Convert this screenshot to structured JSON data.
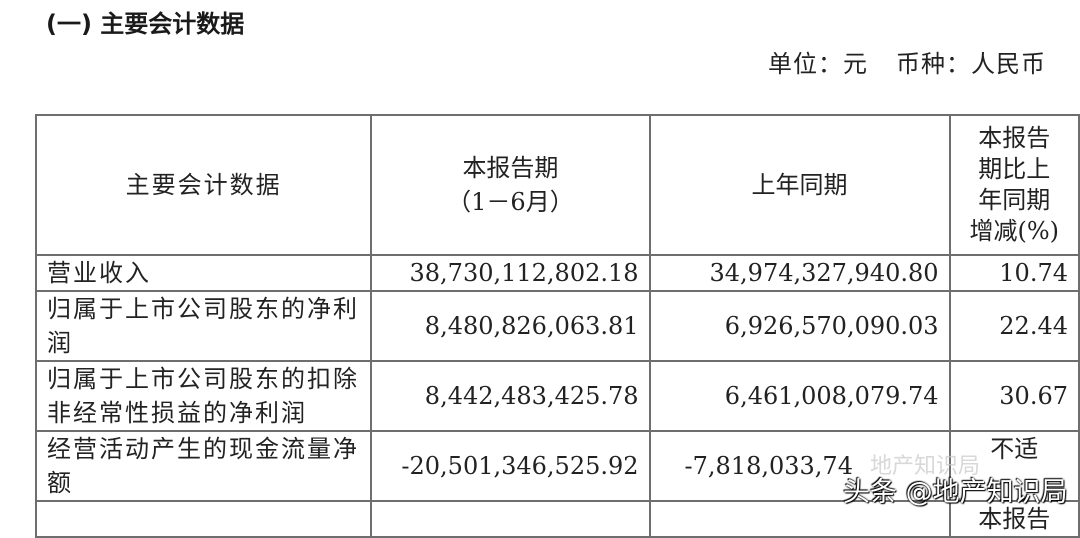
{
  "section_title": "(一) 主要会计数据",
  "unit_label": "单位：元",
  "currency_label": "币种：人民币",
  "table": {
    "headers": [
      "主要会计数据",
      "本报告期\n（1－6月）",
      "上年同期",
      "本报告期比上年同期增减(%)"
    ],
    "header_period_line1": "本报告期",
    "header_period_line2": "（1－6月）",
    "header_change_lines": [
      "本报告",
      "期比上",
      "年同期",
      "增减(%)"
    ],
    "rows": [
      {
        "label": "营业收入",
        "current": "38,730,112,802.18",
        "prior": "34,974,327,940.80",
        "change": "10.74"
      },
      {
        "label": "归属于上市公司股东的净利润",
        "current": "8,480,826,063.81",
        "prior": "6,926,570,090.03",
        "change": "22.44"
      },
      {
        "label": "归属于上市公司股东的扣除非经常性损益的净利润",
        "current": "8,442,483,425.78",
        "prior": "6,461,008,079.74",
        "change": "30.67"
      },
      {
        "label": "经营活动产生的现金流量净额",
        "current": "-20,501,346,525.92",
        "prior": "-7,818,033,74",
        "change": "不适"
      },
      {
        "label": "",
        "current": "",
        "prior": "",
        "change": "本报告"
      }
    ]
  },
  "watermark": "头条 @地产知识局",
  "watermark_faint": "地产知识局"
}
